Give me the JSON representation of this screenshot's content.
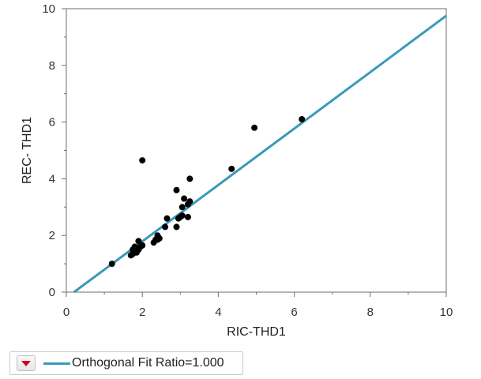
{
  "chart_data": {
    "type": "scatter",
    "xlabel": "RIC-THD1",
    "ylabel": "REC- THD1",
    "xlim": [
      0,
      10
    ],
    "ylim": [
      0,
      10
    ],
    "xticks": [
      0,
      2,
      4,
      6,
      8,
      10
    ],
    "yticks": [
      0,
      2,
      4,
      6,
      8,
      10
    ],
    "grid": false,
    "point_color": "#000000",
    "points": [
      {
        "x": 1.2,
        "y": 1.0
      },
      {
        "x": 1.7,
        "y": 1.3
      },
      {
        "x": 1.75,
        "y": 1.35
      },
      {
        "x": 1.8,
        "y": 1.4
      },
      {
        "x": 1.75,
        "y": 1.5
      },
      {
        "x": 1.85,
        "y": 1.45
      },
      {
        "x": 1.9,
        "y": 1.5
      },
      {
        "x": 1.8,
        "y": 1.6
      },
      {
        "x": 1.95,
        "y": 1.6
      },
      {
        "x": 2.0,
        "y": 1.65
      },
      {
        "x": 1.9,
        "y": 1.8
      },
      {
        "x": 1.85,
        "y": 1.4
      },
      {
        "x": 2.0,
        "y": 4.65
      },
      {
        "x": 2.3,
        "y": 1.75
      },
      {
        "x": 2.35,
        "y": 1.85
      },
      {
        "x": 2.4,
        "y": 2.0
      },
      {
        "x": 2.45,
        "y": 1.9
      },
      {
        "x": 2.4,
        "y": 1.85
      },
      {
        "x": 2.6,
        "y": 2.3
      },
      {
        "x": 2.65,
        "y": 2.6
      },
      {
        "x": 2.9,
        "y": 2.3
      },
      {
        "x": 2.9,
        "y": 3.6
      },
      {
        "x": 2.95,
        "y": 2.6
      },
      {
        "x": 3.0,
        "y": 2.65
      },
      {
        "x": 3.05,
        "y": 2.7
      },
      {
        "x": 3.05,
        "y": 3.0
      },
      {
        "x": 3.1,
        "y": 3.3
      },
      {
        "x": 3.2,
        "y": 2.65
      },
      {
        "x": 3.2,
        "y": 3.1
      },
      {
        "x": 3.25,
        "y": 3.2
      },
      {
        "x": 3.25,
        "y": 4.0
      },
      {
        "x": 4.35,
        "y": 4.35
      },
      {
        "x": 4.95,
        "y": 5.8
      },
      {
        "x": 6.2,
        "y": 6.1
      }
    ],
    "fit_line": {
      "x": [
        0.2,
        10.0
      ],
      "y": [
        0.0,
        9.75
      ],
      "color": "#3a9ab9"
    }
  },
  "legend": {
    "label": "Orthogonal Fit Ratio=1.000",
    "menu_icon": "red-triangle-menu-icon",
    "line_color": "#3a9ab9"
  }
}
